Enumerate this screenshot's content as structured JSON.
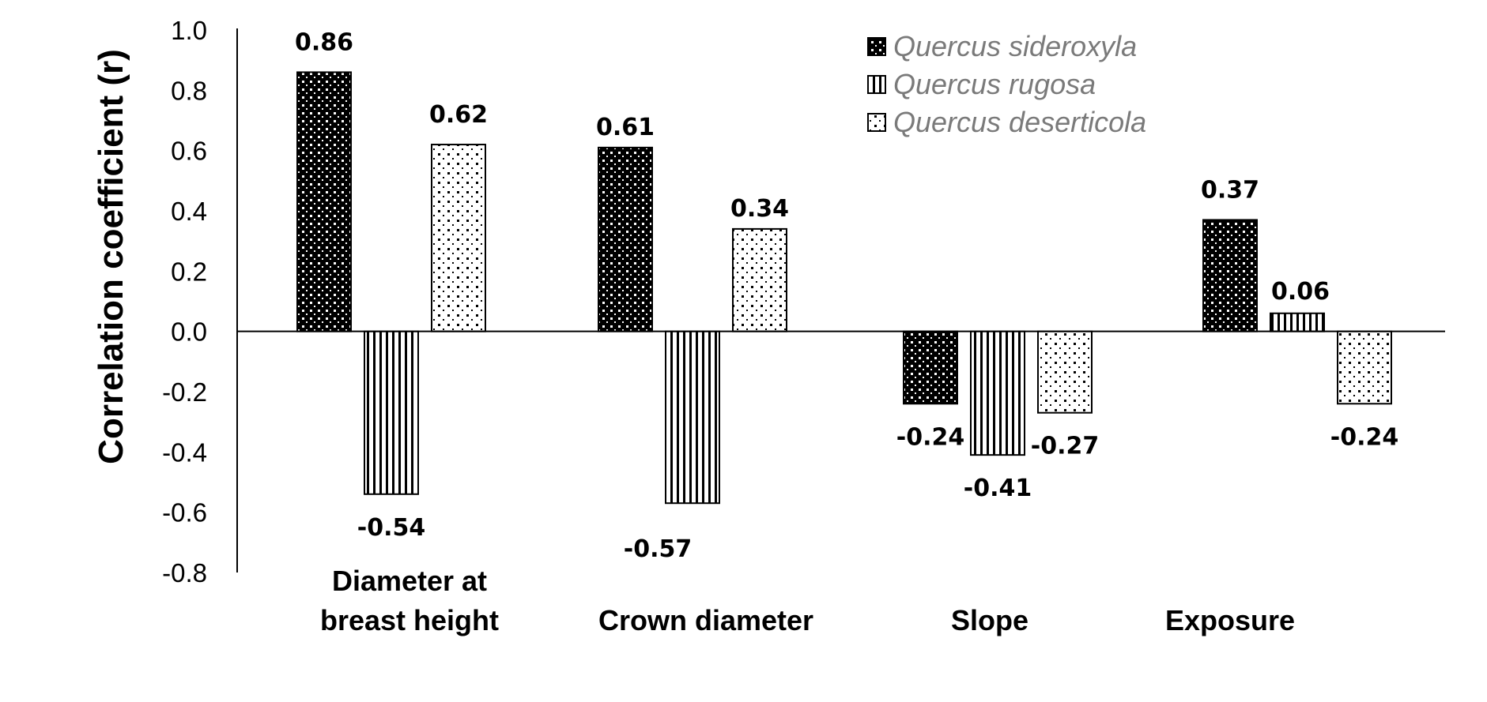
{
  "chart_data": {
    "type": "bar",
    "title": "",
    "xlabel": "",
    "ylabel": "Correlation coefficient (r)",
    "ylim": [
      -0.8,
      1.0
    ],
    "yticks": [
      "1.0",
      "0.8",
      "0.6",
      "0.4",
      "0.2",
      "0.0",
      "-0.2",
      "-0.4",
      "-0.6",
      "-0.8"
    ],
    "grid": false,
    "legend_position": "top-right",
    "categories": [
      [
        "Diameter at",
        "breast height"
      ],
      [
        "Crown diameter"
      ],
      [
        "Slope"
      ],
      [
        "Exposure"
      ]
    ],
    "series": [
      {
        "name": "Quercus sideroxyla",
        "pattern": "dark-dotted",
        "values": [
          0.86,
          0.61,
          -0.24,
          0.37
        ],
        "labels": [
          "0.86",
          "0.61",
          "-0.24",
          "0.37"
        ]
      },
      {
        "name": "Quercus rugosa",
        "pattern": "vertical-stripes",
        "values": [
          -0.54,
          -0.57,
          -0.41,
          0.06
        ],
        "labels": [
          "-0.54",
          "-0.57",
          "-0.41",
          "0.06"
        ]
      },
      {
        "name": "Quercus deserticola",
        "pattern": "light-dotted",
        "values": [
          0.62,
          0.34,
          -0.27,
          -0.24
        ],
        "labels": [
          "0.62",
          "0.34",
          "-0.27",
          "-0.24"
        ]
      }
    ],
    "colors": {
      "axis": "#000000",
      "bar_outline": "#000000",
      "legend_text": "#7a7a7a"
    }
  }
}
